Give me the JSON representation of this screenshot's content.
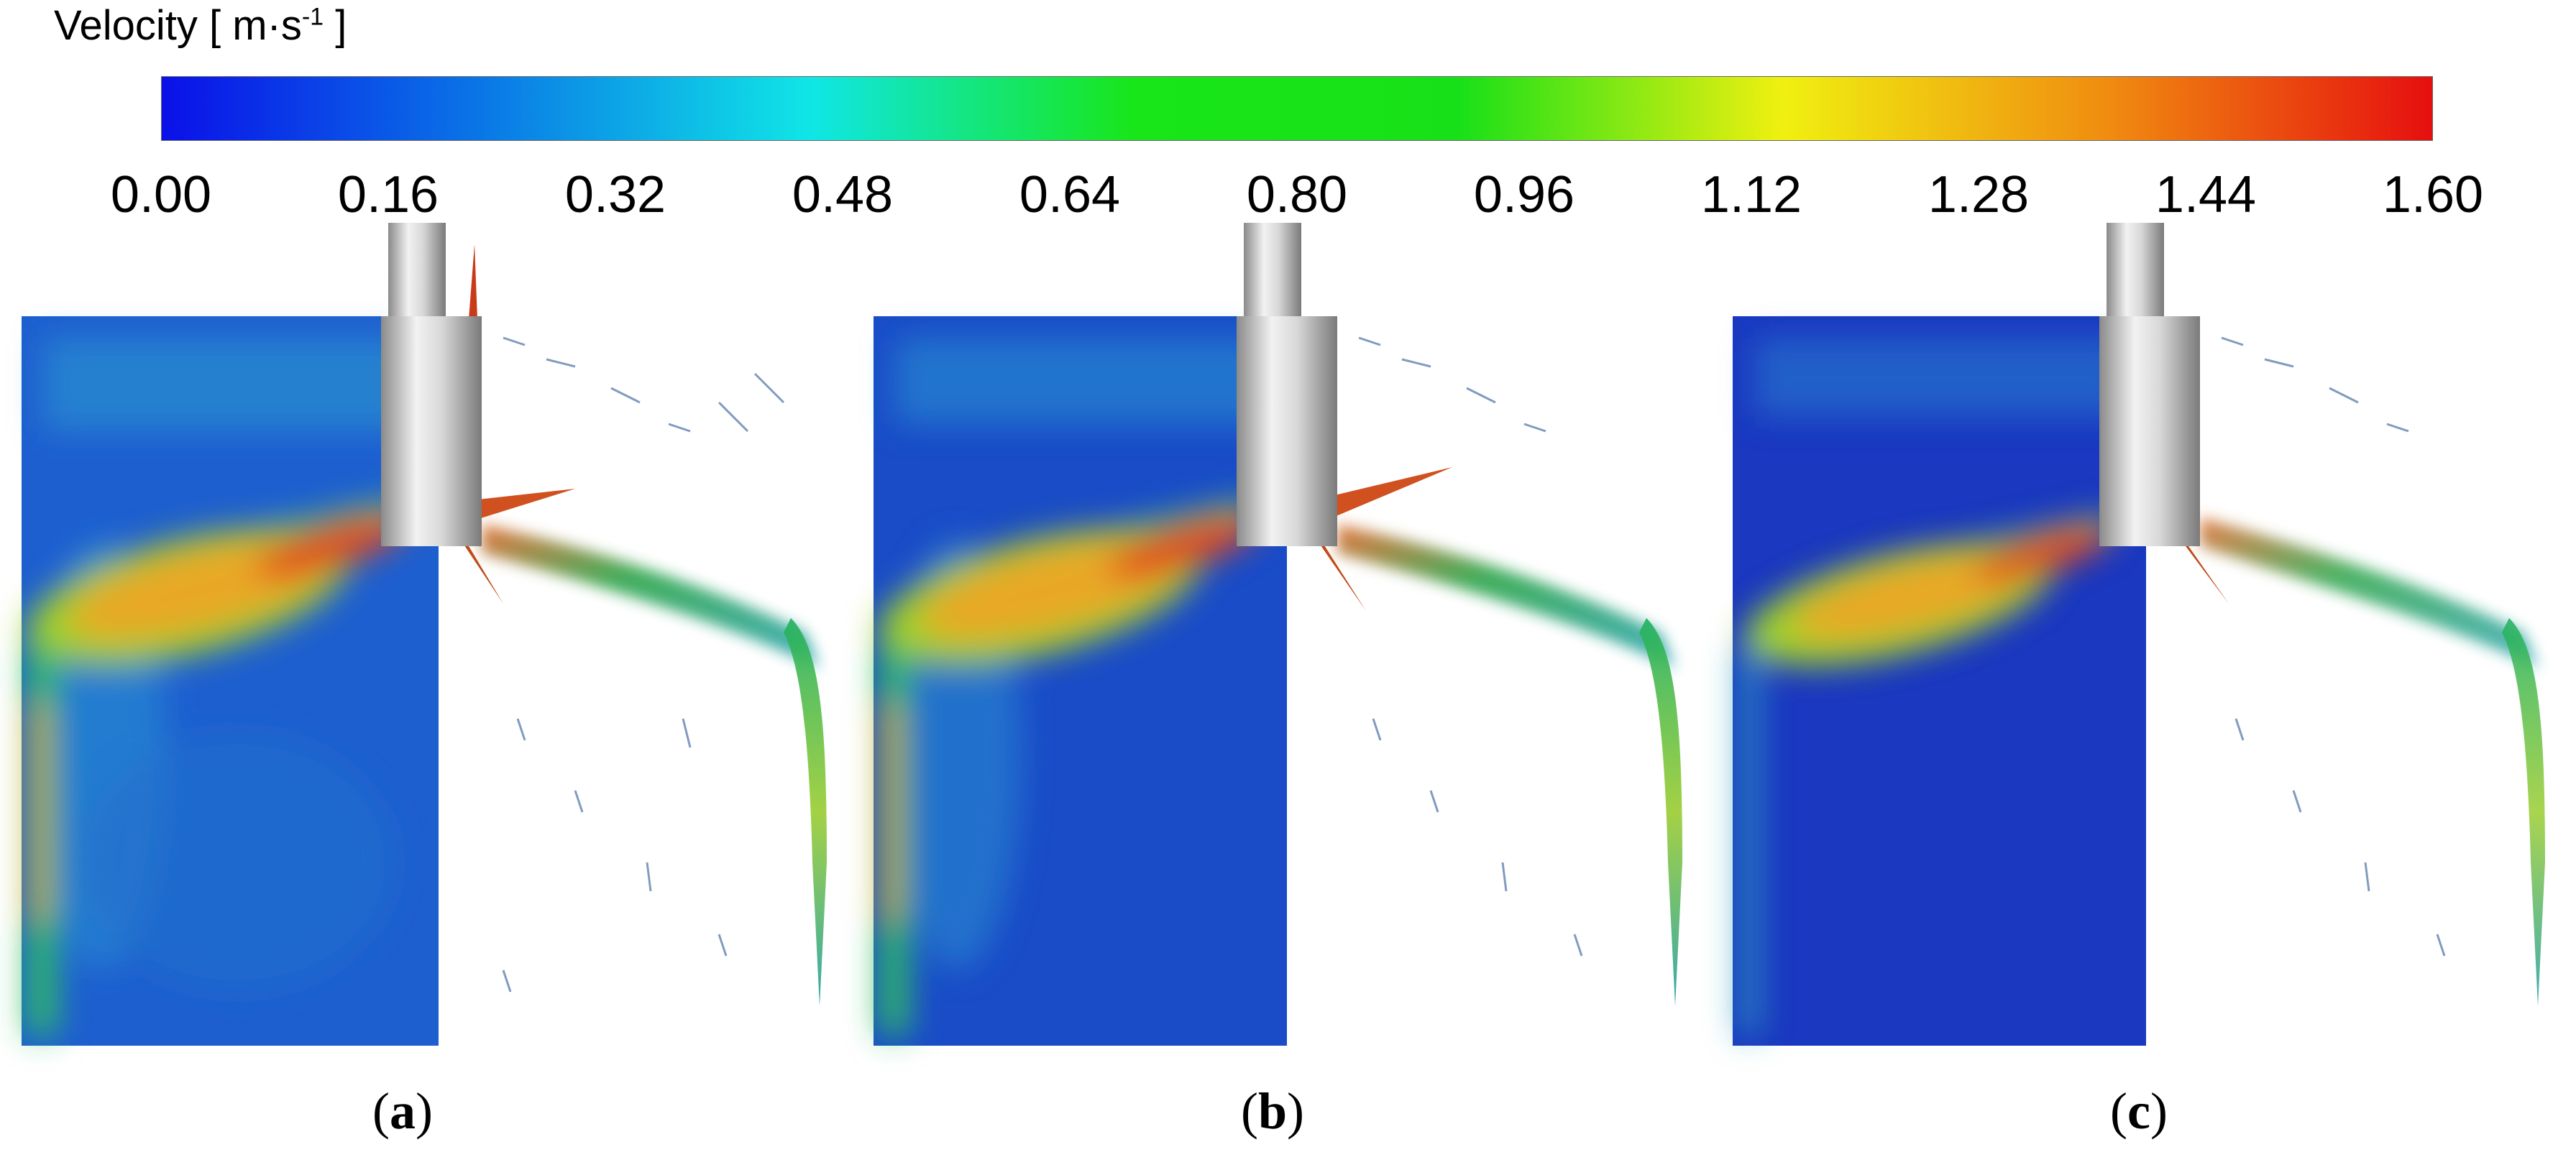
{
  "colorbar": {
    "title_prefix": "Velocity [ m·s",
    "title_exp": "-1",
    "title_suffix": " ]",
    "ticks": [
      "0.00",
      "0.16",
      "0.32",
      "0.48",
      "0.64",
      "0.80",
      "0.96",
      "1.12",
      "1.28",
      "1.44",
      "1.60"
    ],
    "min": 0.0,
    "max": 1.6,
    "colors": [
      "#0a10e8",
      "#0a78e6",
      "#10e6e6",
      "#18e618",
      "#18e018",
      "#f0f010",
      "#f08c10",
      "#e60f0f"
    ]
  },
  "panels": [
    {
      "label_open": "(",
      "label_letter": "a",
      "label_close": ")"
    },
    {
      "label_open": "(",
      "label_letter": "b",
      "label_close": ")"
    },
    {
      "label_open": "(",
      "label_letter": "c",
      "label_close": ")"
    }
  ]
}
